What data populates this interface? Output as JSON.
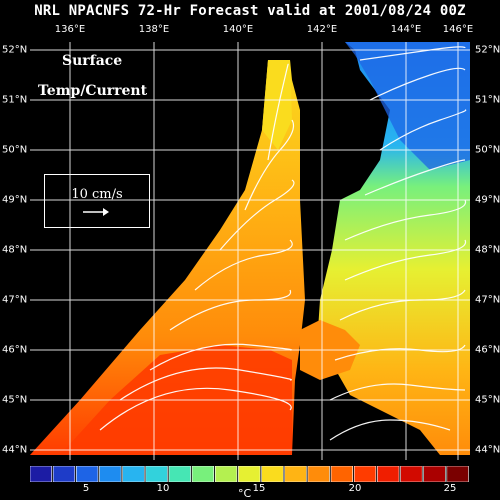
{
  "title": "NRL NPACNFS 72-Hr Forecast valid at 2001/08/24 00Z",
  "labels": {
    "surface": "Surface",
    "temp_current": "Temp/Current",
    "scale_vector": "10 cm/s"
  },
  "lon_labels": [
    "136°E",
    "138°E",
    "140°E",
    "142°E",
    "144°E",
    "146°E"
  ],
  "lat_labels": [
    "52°N",
    "51°N",
    "50°N",
    "49°N",
    "48°N",
    "47°N",
    "46°N",
    "45°N",
    "44°N"
  ],
  "colorbar": {
    "unit": "°C",
    "tick_labels": [
      "5",
      "10",
      "15",
      "20",
      "25"
    ],
    "colors": [
      "#1c1ca4",
      "#1e3cc8",
      "#1e64e6",
      "#1e8cf0",
      "#28b4f0",
      "#32d2dc",
      "#46e6b4",
      "#78f07c",
      "#b4f050",
      "#e6f032",
      "#fadc1e",
      "#ffb414",
      "#ff8c0a",
      "#ff6400",
      "#ff3c00",
      "#f01e00",
      "#d20a00",
      "#aa0000",
      "#7a0000"
    ]
  },
  "colors": {
    "background": "#000000",
    "land": "#000000",
    "text": "#ffffff"
  }
}
